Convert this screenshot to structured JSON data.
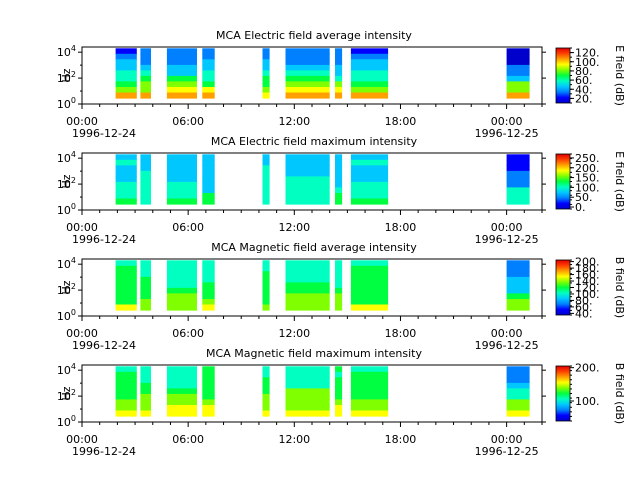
{
  "chart_data": [
    {
      "type": "heatmap",
      "title": "MCA  Electric field average intensity",
      "ylabel": "Hz",
      "y_ticks": [
        "10^4",
        "10^2",
        "10^0"
      ],
      "x_ticks": [
        "00:00",
        "06:00",
        "12:00",
        "18:00",
        "00:00"
      ],
      "x_dates": [
        "1996-12-24",
        "1996-12-25"
      ],
      "xlim": [
        "1996-12-24 00:00",
        "1996-12-25 02:00"
      ],
      "colorbar_label": "E field (dB)",
      "colorbar_ticks": [
        "120.",
        "100.",
        "80.",
        "60.",
        "40.",
        "20."
      ],
      "colorbar_range": [
        10,
        130
      ],
      "colormap": [
        "#0000cc",
        "#0000ff",
        "#0080ff",
        "#00c8ff",
        "#00ffc0",
        "#00ff40",
        "#80ff00",
        "#ffff00",
        "#ffa000",
        "#ff4000",
        "#e00000"
      ],
      "data_intervals": [
        [
          1.9,
          3.1
        ],
        [
          3.3,
          3.9
        ],
        [
          4.8,
          6.5
        ],
        [
          6.8,
          7.5
        ],
        [
          10.2,
          10.6
        ],
        [
          11.5,
          14.0
        ],
        [
          14.3,
          14.7
        ],
        [
          15.2,
          17.3
        ],
        [
          24.0,
          25.3
        ],
        [
          26.8,
          27.5
        ]
      ],
      "levels": [
        0.18,
        0.78
      ]
    },
    {
      "type": "heatmap",
      "title": "MCA  Electric field maximum intensity",
      "ylabel": "Hz",
      "y_ticks": [
        "10^4",
        "10^2",
        "10^0"
      ],
      "x_ticks": [
        "00:00",
        "06:00",
        "12:00",
        "18:00",
        "00:00"
      ],
      "x_dates": [
        "1996-12-24",
        "1996-12-25"
      ],
      "xlim": [
        "1996-12-24 00:00",
        "1996-12-25 02:00"
      ],
      "colorbar_label": "E field (dB)",
      "colorbar_ticks": [
        "250.",
        "200.",
        "150.",
        "100.",
        "50.",
        "0."
      ],
      "colorbar_range": [
        -10,
        270
      ],
      "colormap": [
        "#0000cc",
        "#0000ff",
        "#0080ff",
        "#00c8ff",
        "#00ffc0",
        "#00ff40",
        "#80ff00",
        "#ffff00",
        "#ffa000",
        "#ff4000",
        "#e00000"
      ],
      "data_intervals": [
        [
          1.9,
          3.1
        ],
        [
          3.3,
          3.9
        ],
        [
          4.8,
          6.5
        ],
        [
          6.8,
          7.5
        ],
        [
          10.2,
          10.6
        ],
        [
          11.5,
          14.0
        ],
        [
          14.3,
          14.7
        ],
        [
          15.2,
          17.3
        ],
        [
          24.0,
          25.3
        ],
        [
          26.8,
          27.5
        ]
      ],
      "levels": [
        0.3,
        0.45
      ]
    },
    {
      "type": "heatmap",
      "title": "MCA  Magnetic field average intensity",
      "ylabel": "Hz",
      "y_ticks": [
        "10^4",
        "10^2",
        "10^0"
      ],
      "x_ticks": [
        "00:00",
        "06:00",
        "12:00",
        "18:00",
        "00:00"
      ],
      "x_dates": [
        "1996-12-24",
        "1996-12-25"
      ],
      "xlim": [
        "1996-12-24 00:00",
        "1996-12-25 02:00"
      ],
      "colorbar_label": "B field (dB)",
      "colorbar_ticks": [
        "200.",
        "180.",
        "160.",
        "140.",
        "120.",
        "100.",
        "80.",
        "60.",
        "40."
      ],
      "colorbar_range": [
        35,
        205
      ],
      "colormap": [
        "#0000cc",
        "#0000ff",
        "#0080ff",
        "#00c8ff",
        "#00ffc0",
        "#00ff40",
        "#80ff00",
        "#ffff00",
        "#ffa000",
        "#ff4000",
        "#e00000"
      ],
      "data_intervals": [
        [
          1.9,
          3.1
        ],
        [
          3.3,
          3.9
        ],
        [
          4.8,
          6.5
        ],
        [
          6.8,
          7.5
        ],
        [
          10.2,
          10.6
        ],
        [
          11.5,
          14.0
        ],
        [
          14.3,
          14.7
        ],
        [
          15.2,
          17.3
        ],
        [
          24.0,
          25.3
        ],
        [
          26.8,
          27.5
        ]
      ],
      "levels": [
        0.4,
        0.62
      ]
    },
    {
      "type": "heatmap",
      "title": "MCA  Magnetic field maximum intensity",
      "ylabel": "Hz",
      "y_ticks": [
        "10^4",
        "10^2",
        "10^0"
      ],
      "x_ticks": [
        "00:00",
        "06:00",
        "12:00",
        "18:00",
        "00:00"
      ],
      "x_dates": [
        "1996-12-24",
        "1996-12-25"
      ],
      "xlim": [
        "1996-12-24 00:00",
        "1996-12-25 02:00"
      ],
      "colorbar_label": "B field (dB)",
      "colorbar_ticks": [
        "200.",
        "100."
      ],
      "colorbar_range": [
        40,
        205
      ],
      "colormap": [
        "#0000cc",
        "#0000ff",
        "#0080ff",
        "#00c8ff",
        "#00ffc0",
        "#00ff40",
        "#80ff00",
        "#ffff00",
        "#ffa000",
        "#ff4000",
        "#e00000"
      ],
      "data_intervals": [
        [
          1.9,
          3.1
        ],
        [
          3.3,
          3.9
        ],
        [
          4.8,
          6.5
        ],
        [
          6.8,
          7.5
        ],
        [
          10.2,
          10.6
        ],
        [
          11.5,
          14.0
        ],
        [
          14.3,
          14.7
        ],
        [
          15.2,
          17.3
        ],
        [
          24.0,
          25.3
        ],
        [
          26.8,
          27.5
        ]
      ],
      "levels": [
        0.42,
        0.7
      ]
    }
  ]
}
